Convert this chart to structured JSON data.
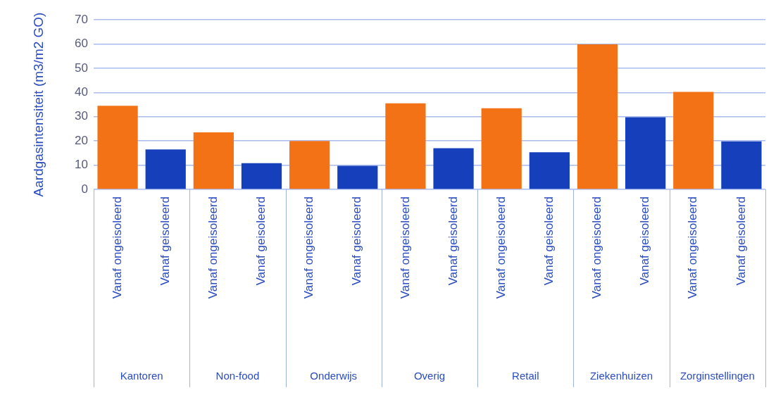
{
  "chart_data": {
    "type": "bar",
    "ylabel": "Aardgasintensiteit (m3/m2 GO)",
    "categories": [
      "Vanaf ongeisoleerd",
      "Vanaf geisoleerd",
      "Vanaf ongeisoleerd",
      "Vanaf geisoleerd",
      "Vanaf ongeisoleerd",
      "Vanaf geisoleerd",
      "Vanaf ongeisoleerd",
      "Vanaf geisoleerd",
      "Vanaf ongeisoleerd",
      "Vanaf geisoleerd",
      "Vanaf ongeisoleerd",
      "Vanaf geisoleerd",
      "Vanaf ongeisoleerd",
      "Vanaf geisoleerd"
    ],
    "values": [
      34.5,
      16.5,
      23.5,
      10.8,
      20,
      9.7,
      35.5,
      17,
      33.5,
      15.3,
      59.8,
      29.8,
      40.2,
      19.8
    ],
    "colors": [
      "#f47216",
      "#153fbb",
      "#f47216",
      "#153fbb",
      "#f47216",
      "#153fbb",
      "#f47216",
      "#153fbb",
      "#f47216",
      "#153fbb",
      "#f47216",
      "#153fbb",
      "#f47216",
      "#153fbb"
    ],
    "annotations": [
      "Kantoren",
      "Non-food",
      "Onderwijs",
      "Overig",
      "Retail",
      "Ziekenhuizen",
      "Zorginstellingen"
    ],
    "ylim": [
      0,
      70
    ],
    "yticks": [
      0,
      10,
      20,
      30,
      40,
      50,
      60,
      70
    ],
    "grid": "y",
    "legend": false
  }
}
